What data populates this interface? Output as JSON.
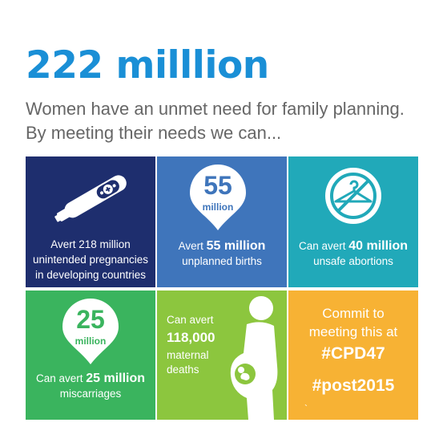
{
  "header": {
    "headline": "222 milllion",
    "subline_1": "Women have an unmet need for family planning.",
    "subline_2": "By meeting their needs we can..."
  },
  "tiles": {
    "pregnancies": {
      "line_1": "Avert 218 million",
      "line_2": "unintended pregnancies",
      "line_3": "in developing countries",
      "color": "#1e2e6e",
      "icon": "pregnancy-test-icon"
    },
    "births": {
      "badge_number": "55",
      "badge_unit": "million",
      "prefix": "Avert",
      "emphasis": "55 million",
      "line_2": "unplanned births",
      "color": "#3f75bb"
    },
    "abortions": {
      "prefix": "Can avert",
      "emphasis": "40 million",
      "line_2": "unsafe abortions",
      "color": "#21a9b9",
      "icon": "no-hanger-icon"
    },
    "miscarriages": {
      "badge_number": "25",
      "badge_unit": "million",
      "prefix": "Can avert",
      "emphasis": "25 million",
      "line_2": "miscarriages",
      "color": "#3ab45e"
    },
    "maternal": {
      "line_1": "Can avert",
      "number": "118,000",
      "line_3": "maternal",
      "line_4": "deaths",
      "color": "#8cc63e",
      "icon": "pregnant-woman-icon"
    },
    "commit": {
      "line_1": "Commit to",
      "line_2": "meeting this at",
      "hashtag_1": "#CPD47",
      "hashtag_2": "#post2015",
      "mark": "`",
      "color": "#f7b234"
    }
  }
}
